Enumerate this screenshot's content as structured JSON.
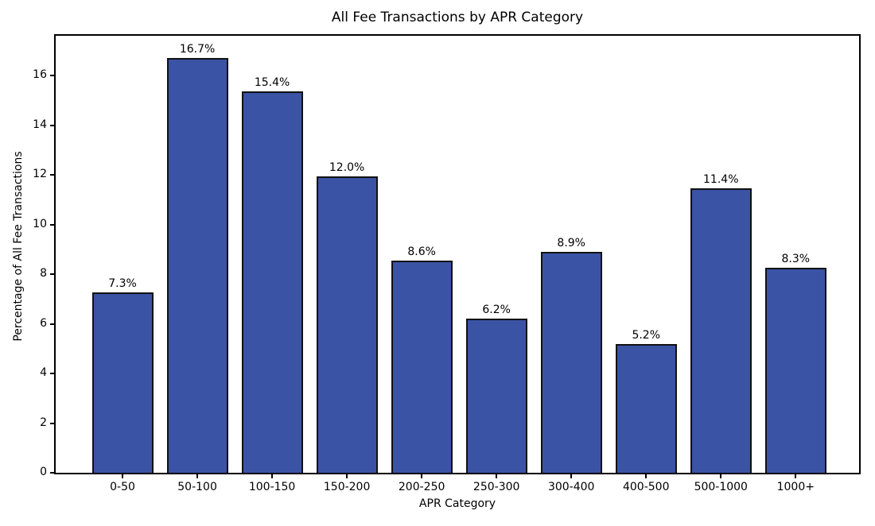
{
  "figure": {
    "background": "#ffffff"
  },
  "chart_data": {
    "type": "bar",
    "title": "All Fee Transactions by APR Category",
    "xlabel": "APR Category",
    "ylabel": "Percentage of All Fee Transactions",
    "categories": [
      "0-50",
      "50-100",
      "100-150",
      "150-200",
      "200-250",
      "250-300",
      "300-400",
      "400-500",
      "500-1000",
      "1000+"
    ],
    "values": [
      7.25,
      16.7,
      15.35,
      11.95,
      8.55,
      6.2,
      8.9,
      5.2,
      11.45,
      8.25
    ],
    "bar_labels": [
      "7.3%",
      "16.7%",
      "15.4%",
      "12.0%",
      "8.6%",
      "6.2%",
      "8.9%",
      "5.2%",
      "11.4%",
      "8.3%"
    ],
    "yticks": [
      0,
      2,
      4,
      6,
      8,
      10,
      12,
      14,
      16
    ],
    "ylim": [
      0,
      17.6
    ],
    "grid": false,
    "legend": null,
    "bar_color": "#3A53A4",
    "bar_edge_color": "#111111",
    "axis_color": "#000000"
  }
}
